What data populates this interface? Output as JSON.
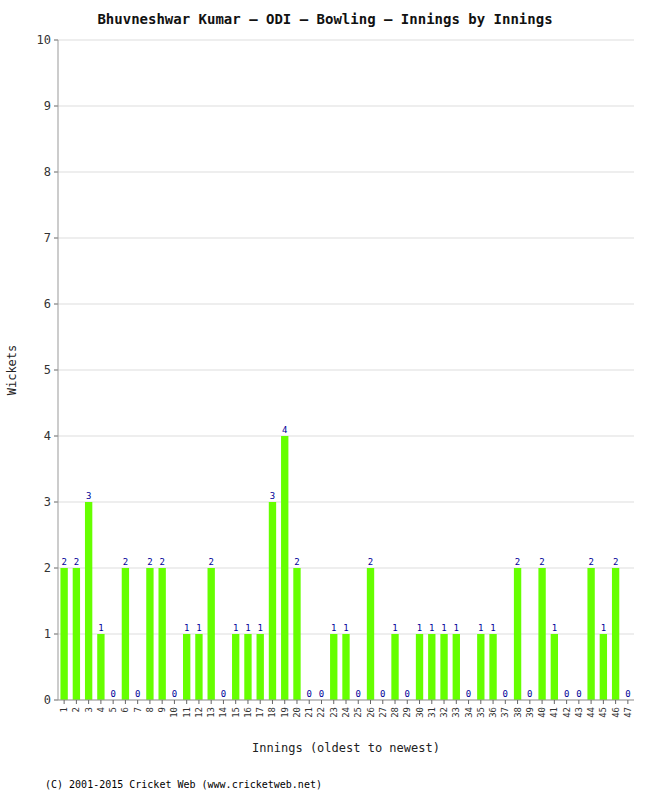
{
  "chart_data": {
    "type": "bar",
    "title": "Bhuvneshwar Kumar – ODI – Bowling – Innings by Innings",
    "x_label": "Innings (oldest to newest)",
    "y_label": "Wickets",
    "categories": [
      1,
      2,
      3,
      4,
      5,
      6,
      7,
      8,
      9,
      10,
      11,
      12,
      13,
      14,
      15,
      16,
      17,
      18,
      19,
      20,
      21,
      22,
      23,
      24,
      25,
      26,
      27,
      28,
      29,
      30,
      31,
      32,
      33,
      34,
      35,
      36,
      37,
      38,
      39,
      40,
      41,
      42,
      43,
      44,
      45,
      46,
      47
    ],
    "values": [
      2,
      2,
      3,
      1,
      0,
      2,
      0,
      2,
      2,
      0,
      1,
      1,
      2,
      0,
      1,
      1,
      1,
      3,
      4,
      2,
      0,
      0,
      1,
      1,
      0,
      2,
      0,
      1,
      0,
      1,
      1,
      1,
      1,
      0,
      1,
      1,
      0,
      2,
      0,
      2,
      1,
      0,
      0,
      2,
      1,
      2,
      0
    ],
    "color": "#66ff00",
    "ylim": [
      0,
      10
    ],
    "yticks": [
      0,
      1,
      2,
      3,
      4,
      5,
      6,
      7,
      8,
      9,
      10
    ],
    "grid": true,
    "data_labels": true,
    "annotations": [
      "(C) 2001-2015 Cricket Web (www.cricketweb.net)"
    ]
  }
}
